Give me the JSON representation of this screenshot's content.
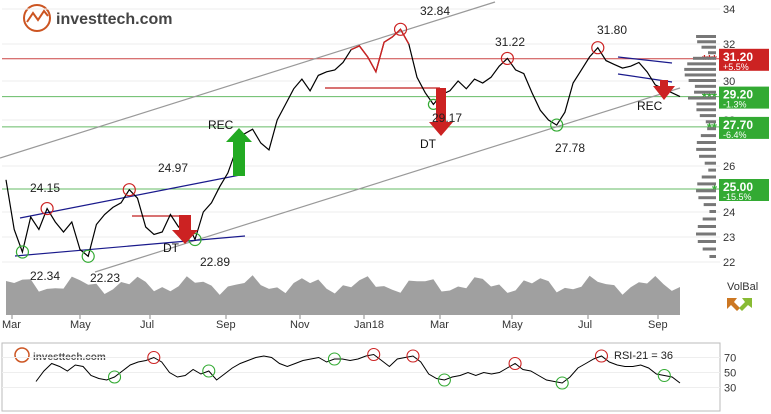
{
  "logo": {
    "text": "investtech.com"
  },
  "volbal_label": "VolBal",
  "colors": {
    "price": "#000000",
    "price_red": "#cc2222",
    "price_green": "#228822",
    "channel": "#999999",
    "trend": "#1a1a8c",
    "support": "#66bb66",
    "resistance": "#cc4444",
    "volume": "#a0a0a0",
    "arrow_up": "#22aa22",
    "arrow_down": "#cc2222",
    "label_red": "#cc2222",
    "label_green": "#33aa33"
  },
  "chart_data": [
    {
      "type": "line",
      "x": [
        "2017-03-01",
        "2017-03-08",
        "2017-03-15",
        "2017-03-22",
        "2017-03-29",
        "2017-04-05",
        "2017-04-12",
        "2017-04-19",
        "2017-04-26",
        "2017-05-03",
        "2017-05-10",
        "2017-05-17",
        "2017-05-24",
        "2017-05-31",
        "2017-06-07",
        "2017-06-14",
        "2017-06-21",
        "2017-06-28",
        "2017-07-05",
        "2017-07-12",
        "2017-07-19",
        "2017-07-26",
        "2017-08-02",
        "2017-08-09",
        "2017-08-16",
        "2017-08-23",
        "2017-08-30",
        "2017-09-06",
        "2017-09-13",
        "2017-09-20",
        "2017-09-27",
        "2017-10-04",
        "2017-10-11",
        "2017-10-18",
        "2017-10-25",
        "2017-11-01",
        "2017-11-08",
        "2017-11-15",
        "2017-11-22",
        "2017-11-29",
        "2017-12-06",
        "2017-12-13",
        "2017-12-20",
        "2017-12-27",
        "2018-01-03",
        "2018-01-10",
        "2018-01-17",
        "2018-01-24",
        "2018-01-31",
        "2018-02-07",
        "2018-02-14",
        "2018-02-21",
        "2018-02-28",
        "2018-03-07",
        "2018-03-14",
        "2018-03-21",
        "2018-03-28",
        "2018-04-04",
        "2018-04-11",
        "2018-04-18",
        "2018-04-25",
        "2018-05-02",
        "2018-05-09",
        "2018-05-16",
        "2018-05-23",
        "2018-05-30",
        "2018-06-06",
        "2018-06-13",
        "2018-06-20",
        "2018-06-27",
        "2018-07-04",
        "2018-07-11",
        "2018-07-18",
        "2018-07-25",
        "2018-08-01",
        "2018-08-08",
        "2018-08-15",
        "2018-08-22",
        "2018-08-29",
        "2018-09-05",
        "2018-09-12",
        "2018-09-19",
        "2018-09-26"
      ],
      "series": [
        {
          "values": [
            25.4,
            23.3,
            22.4,
            23.8,
            23.3,
            24.15,
            23.6,
            23.2,
            23.6,
            22.5,
            22.23,
            23.5,
            23.9,
            24.2,
            24.4,
            24.97,
            24.6,
            23.4,
            23.1,
            23.2,
            23.9,
            23.4,
            23.6,
            22.9,
            24.0,
            24.4,
            25.1,
            25.7,
            26.7,
            27.4,
            27.6,
            27.0,
            26.7,
            28.0,
            28.8,
            29.6,
            30.1,
            29.5,
            30.3,
            30.5,
            30.6,
            31.0,
            31.7,
            31.9,
            31.3,
            30.5,
            32.1,
            32.4,
            32.84,
            32.0,
            30.2,
            29.4,
            28.8,
            29.3,
            29.5,
            30.0,
            29.6,
            30.1,
            29.9,
            30.2,
            30.8,
            31.22,
            30.6,
            30.4,
            29.4,
            28.5,
            28.0,
            27.78,
            28.4,
            29.9,
            30.6,
            31.3,
            31.8,
            31.1,
            30.9,
            30.7,
            30.8,
            31.0,
            30.5,
            29.8,
            29.6,
            29.4,
            29.2
          ]
        }
      ],
      "y_ticks": [
        22,
        23,
        24,
        26,
        28,
        30,
        32,
        34
      ],
      "x_ticks": [
        "Mar",
        "May",
        "Jul",
        "Sep",
        "Nov",
        "Jan18",
        "Mar",
        "May",
        "Jul",
        "Sep"
      ],
      "annotations": [
        "24.15",
        "24.97",
        "22.34",
        "22.23",
        "22.89",
        "32.84",
        "31.22",
        "31.80",
        "29.17",
        "27.78"
      ],
      "signals": [
        {
          "label": "REC",
          "direction": "up"
        },
        {
          "label": "DT",
          "direction": "down"
        },
        {
          "label": "DT",
          "direction": "down"
        },
        {
          "label": "REC",
          "direction": "down"
        }
      ],
      "levels": [
        {
          "value": 31.2,
          "label": "31.20",
          "pct": "+5.5%",
          "kind": "resistance",
          "marker": "***"
        },
        {
          "value": 29.2,
          "label": "29.20",
          "pct": "-1.3%",
          "kind": "support",
          "marker": "***"
        },
        {
          "value": 27.7,
          "label": "27.70",
          "pct": "-6.4%",
          "kind": "support",
          "marker": "**"
        },
        {
          "value": 25.0,
          "label": "25.00",
          "pct": "-15.5%",
          "kind": "support",
          "marker": "*"
        }
      ]
    },
    {
      "type": "line",
      "title": "RSI-21 = 36",
      "y_ticks": [
        30,
        50,
        70
      ],
      "series": [
        {
          "values": [
            38,
            52,
            62,
            58,
            52,
            60,
            58,
            46,
            42,
            40,
            44,
            52,
            60,
            64,
            66,
            70,
            64,
            50,
            44,
            46,
            54,
            48,
            52,
            40,
            48,
            56,
            62,
            66,
            70,
            72,
            70,
            62,
            58,
            62,
            66,
            68,
            70,
            64,
            68,
            68,
            66,
            68,
            72,
            74,
            66,
            58,
            68,
            70,
            72,
            64,
            48,
            42,
            40,
            44,
            46,
            50,
            46,
            50,
            48,
            50,
            56,
            62,
            54,
            52,
            46,
            40,
            38,
            36,
            44,
            56,
            62,
            68,
            72,
            64,
            60,
            58,
            58,
            60,
            56,
            48,
            46,
            44,
            36
          ]
        }
      ]
    }
  ]
}
